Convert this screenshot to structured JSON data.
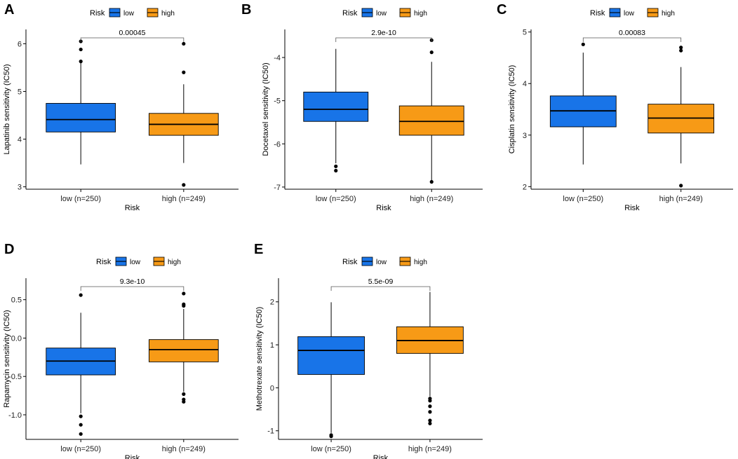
{
  "figure": {
    "legend_title": "Risk",
    "legend_items": [
      {
        "label": "low",
        "color": "#1874E8"
      },
      {
        "label": "high",
        "color": "#F79A16"
      }
    ]
  },
  "chart_data": [
    {
      "type": "box",
      "panel": "A",
      "ylabel": "Lapatinib sensitivity (IC50)",
      "xlabel": "Risk",
      "categories": [
        "low (n=250)",
        "high (n=249)"
      ],
      "ylim": [
        2.95,
        6.3
      ],
      "yticks": [
        {
          "v": 3,
          "t": "3"
        },
        {
          "v": 4,
          "t": "4"
        },
        {
          "v": 5,
          "t": "5"
        },
        {
          "v": 6,
          "t": "6"
        }
      ],
      "pvalue": "0.00045",
      "boxes": [
        {
          "group": "low",
          "color": "#1874E8",
          "whisker_low": 3.47,
          "q1": 4.15,
          "median": 4.41,
          "q3": 4.75,
          "whisker_high": 5.6,
          "outliers": [
            5.63,
            5.88,
            6.05
          ]
        },
        {
          "group": "high",
          "color": "#F79A16",
          "whisker_low": 3.5,
          "q1": 4.08,
          "median": 4.31,
          "q3": 4.54,
          "whisker_high": 5.15,
          "outliers": [
            3.04,
            5.4,
            6.0
          ]
        }
      ]
    },
    {
      "type": "box",
      "panel": "B",
      "ylabel": "Docetaxel sensitivity (IC50)",
      "xlabel": "Risk",
      "categories": [
        "low (n=250)",
        "high (n=249)"
      ],
      "ylim": [
        -7.05,
        -3.35
      ],
      "yticks": [
        {
          "v": -7,
          "t": "-7"
        },
        {
          "v": -6,
          "t": "-6"
        },
        {
          "v": -5,
          "t": "-5"
        },
        {
          "v": -4,
          "t": "-4"
        }
      ],
      "pvalue": "2.9e-10",
      "boxes": [
        {
          "group": "low",
          "color": "#1874E8",
          "whisker_low": -6.45,
          "q1": -5.48,
          "median": -5.2,
          "q3": -4.8,
          "whisker_high": -3.8,
          "outliers": [
            -6.52,
            -6.62
          ]
        },
        {
          "group": "high",
          "color": "#F79A16",
          "whisker_low": -6.85,
          "q1": -5.8,
          "median": -5.48,
          "q3": -5.12,
          "whisker_high": -4.1,
          "outliers": [
            -6.88,
            -3.88,
            -3.6
          ]
        }
      ]
    },
    {
      "type": "box",
      "panel": "C",
      "ylabel": "Cisplatin sensitivity (IC50)",
      "xlabel": "Risk",
      "categories": [
        "low (n=250)",
        "high (n=249)"
      ],
      "ylim": [
        1.95,
        5.05
      ],
      "yticks": [
        {
          "v": 2,
          "t": "2"
        },
        {
          "v": 3,
          "t": "3"
        },
        {
          "v": 4,
          "t": "4"
        },
        {
          "v": 5,
          "t": "5"
        }
      ],
      "pvalue": "0.00083",
      "boxes": [
        {
          "group": "low",
          "color": "#1874E8",
          "whisker_low": 2.43,
          "q1": 3.16,
          "median": 3.47,
          "q3": 3.76,
          "whisker_high": 4.6,
          "outliers": [
            4.76
          ]
        },
        {
          "group": "high",
          "color": "#F79A16",
          "whisker_low": 2.45,
          "q1": 3.04,
          "median": 3.33,
          "q3": 3.6,
          "whisker_high": 4.32,
          "outliers": [
            2.02,
            4.64,
            4.7
          ]
        }
      ]
    },
    {
      "type": "box",
      "panel": "D",
      "ylabel": "Rapamycin sensitivity (IC50)",
      "xlabel": "Risk",
      "categories": [
        "low (n=250)",
        "high (n=249)"
      ],
      "ylim": [
        -1.32,
        0.78
      ],
      "yticks": [
        {
          "v": -1.0,
          "t": "-1.0"
        },
        {
          "v": -0.5,
          "t": "-0.5"
        },
        {
          "v": 0.0,
          "t": "0.0"
        },
        {
          "v": 0.5,
          "t": "0.5"
        }
      ],
      "pvalue": "9.3e-10",
      "boxes": [
        {
          "group": "low",
          "color": "#1874E8",
          "whisker_low": -0.98,
          "q1": -0.48,
          "median": -0.3,
          "q3": -0.13,
          "whisker_high": 0.33,
          "outliers": [
            -1.02,
            -1.13,
            -1.25,
            0.56
          ]
        },
        {
          "group": "high",
          "color": "#F79A16",
          "whisker_low": -0.7,
          "q1": -0.31,
          "median": -0.15,
          "q3": -0.02,
          "whisker_high": 0.38,
          "outliers": [
            -0.73,
            -0.8,
            -0.83,
            0.42,
            0.44,
            0.58
          ]
        }
      ]
    },
    {
      "type": "box",
      "panel": "E",
      "ylabel": "Methotrexate sensitivity (IC50)",
      "xlabel": "Risk",
      "categories": [
        "low (n=250)",
        "high (n=249)"
      ],
      "ylim": [
        -1.2,
        2.55
      ],
      "yticks": [
        {
          "v": -1,
          "t": "-1"
        },
        {
          "v": 0,
          "t": "0"
        },
        {
          "v": 1,
          "t": "1"
        },
        {
          "v": 2,
          "t": "2"
        }
      ],
      "pvalue": "5.5e-09",
      "boxes": [
        {
          "group": "low",
          "color": "#1874E8",
          "whisker_low": -1.05,
          "q1": 0.31,
          "median": 0.87,
          "q3": 1.19,
          "whisker_high": 1.99,
          "outliers": [
            -1.1,
            -1.13
          ]
        },
        {
          "group": "high",
          "color": "#F79A16",
          "whisker_low": -0.2,
          "q1": 0.8,
          "median": 1.1,
          "q3": 1.42,
          "whisker_high": 2.23,
          "outliers": [
            -0.25,
            -0.3,
            -0.43,
            -0.56,
            -0.76,
            -0.83
          ]
        }
      ]
    }
  ]
}
